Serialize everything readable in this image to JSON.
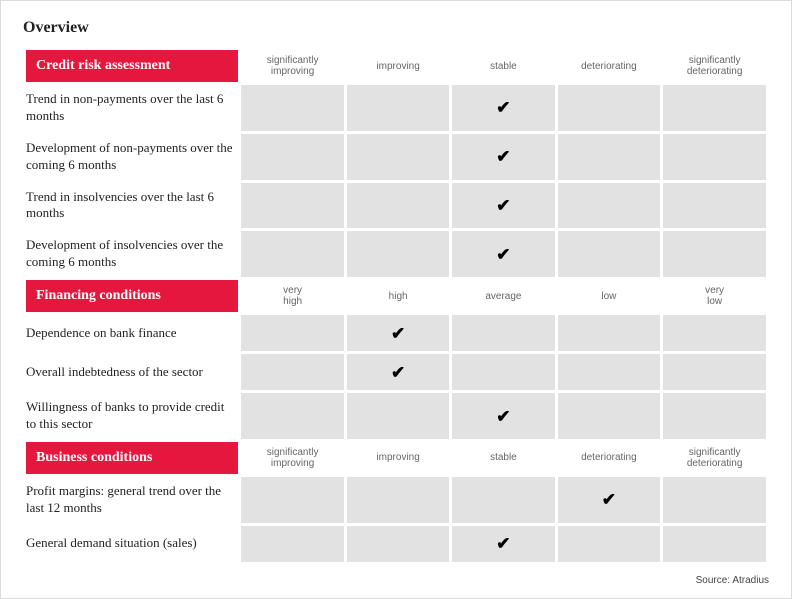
{
  "title": "Overview",
  "sections": [
    {
      "header": "Credit risk assessment",
      "columns": [
        "significantly improving",
        "improving",
        "stable",
        "deteriorating",
        "significantly deteriorating"
      ],
      "rows": [
        {
          "label": "Trend in non-payments over the last 6 months",
          "mark": 2
        },
        {
          "label": "Development of non-payments over the coming 6 months",
          "mark": 2
        },
        {
          "label": "Trend in insolvencies over the last 6 months",
          "mark": 2
        },
        {
          "label": "Development of insolvencies over the coming 6 months",
          "mark": 2
        }
      ]
    },
    {
      "header": "Financing conditions",
      "columns": [
        "very high",
        "high",
        "average",
        "low",
        "very low"
      ],
      "rows": [
        {
          "label": "Dependence on bank finance",
          "mark": 1
        },
        {
          "label": "Overall indebtedness of the sector",
          "mark": 1
        },
        {
          "label": "Willingness of banks to provide credit to this sector",
          "mark": 2
        }
      ]
    },
    {
      "header": "Business conditions",
      "columns": [
        "significantly improving",
        "improving",
        "stable",
        "deteriorating",
        "significantly deteriorating"
      ],
      "rows": [
        {
          "label": "Profit margins: general trend over the last 12 months",
          "mark": 3
        },
        {
          "label": "General demand situation (sales)",
          "mark": 2
        }
      ]
    }
  ],
  "source": "Source: Atradius",
  "colors": {
    "accent": "#e5173f",
    "cell_bg": "#e2e2e2",
    "text": "#222222"
  }
}
